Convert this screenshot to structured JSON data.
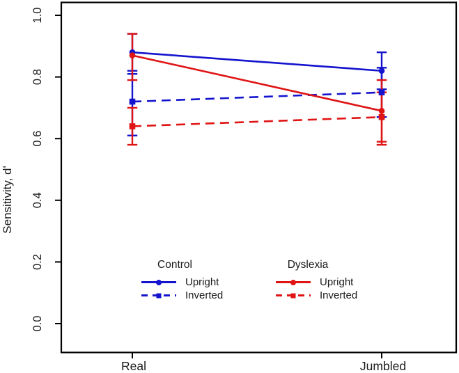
{
  "figure": {
    "background": "#ffffff",
    "box_color": "#000000",
    "text_color": "#1a1a1a"
  },
  "chart_data": {
    "type": "line",
    "title": "",
    "xlabel": "",
    "ylabel": "Sensitivity, d'",
    "categories": [
      "Real",
      "Jumbled"
    ],
    "ylim": [
      0.0,
      1.0
    ],
    "yticks": [
      0.0,
      0.2,
      0.4,
      0.6,
      0.8,
      1.0
    ],
    "grid": false,
    "error_bars": true,
    "series": [
      {
        "name": "Control Upright",
        "group": "Control",
        "label": "Upright",
        "color": "#1414CE",
        "line": "solid",
        "marker": "circle",
        "values": [
          0.88,
          0.82
        ],
        "err_low": [
          0.82,
          0.76
        ],
        "err_high": [
          0.94,
          0.88
        ]
      },
      {
        "name": "Control Inverted",
        "group": "Control",
        "label": "Inverted",
        "color": "#1414CE",
        "line": "dashed",
        "marker": "square",
        "values": [
          0.72,
          0.75
        ],
        "err_low": [
          0.61,
          0.67
        ],
        "err_high": [
          0.81,
          0.83
        ]
      },
      {
        "name": "Dyslexia Upright",
        "group": "Dyslexia",
        "label": "Upright",
        "color": "#E01414",
        "line": "solid",
        "marker": "circle",
        "values": [
          0.87,
          0.69
        ],
        "err_low": [
          0.79,
          0.59
        ],
        "err_high": [
          0.94,
          0.79
        ]
      },
      {
        "name": "Dyslexia Inverted",
        "group": "Dyslexia",
        "label": "Inverted",
        "color": "#E01414",
        "line": "dashed",
        "marker": "square",
        "values": [
          0.64,
          0.67
        ],
        "err_low": [
          0.58,
          0.58
        ],
        "err_high": [
          0.7,
          0.75
        ]
      }
    ],
    "legend": {
      "position": "inside-bottom-center",
      "columns": [
        {
          "title": "Control",
          "color": "#1414CE",
          "entries": [
            {
              "label": "Upright",
              "line": "solid",
              "marker": "circle"
            },
            {
              "label": "Inverted",
              "line": "dashed",
              "marker": "square"
            }
          ]
        },
        {
          "title": "Dyslexia",
          "color": "#E01414",
          "entries": [
            {
              "label": "Upright",
              "line": "solid",
              "marker": "circle"
            },
            {
              "label": "Inverted",
              "line": "dashed",
              "marker": "square"
            }
          ]
        }
      ]
    }
  }
}
